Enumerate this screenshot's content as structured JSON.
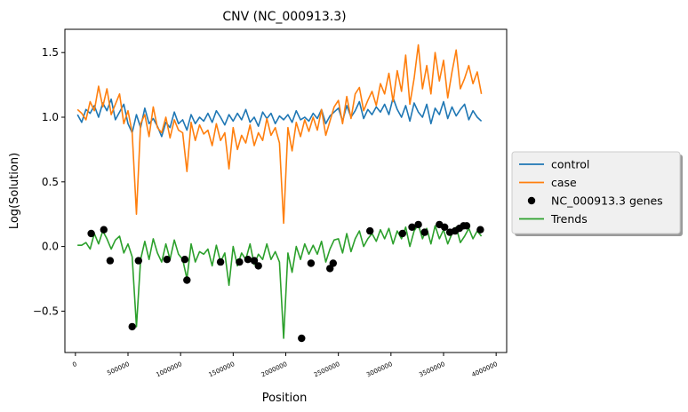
{
  "chart_data": {
    "type": "line",
    "title": "CNV (NC_000913.3)",
    "xlabel": "Position",
    "ylabel": "Log(Solution)",
    "xlim": [
      -100000,
      4100000
    ],
    "ylim": [
      -0.82,
      1.68
    ],
    "x_ticks": [
      0,
      500000,
      1000000,
      1500000,
      2000000,
      2500000,
      3000000,
      3500000,
      4000000
    ],
    "x_tick_labels": [
      "0",
      "500000",
      "1000000",
      "1500000",
      "2000000",
      "2500000",
      "3000000",
      "3500000",
      "4000000"
    ],
    "y_ticks": [
      -0.5,
      0.0,
      0.5,
      1.0,
      1.5
    ],
    "y_tick_labels": [
      "−0.5",
      "0.0",
      "0.5",
      "1.0",
      "1.5"
    ],
    "grid": false,
    "legend_placement": "right, outside plot",
    "series": [
      {
        "name": "control",
        "kind": "line",
        "color": "#1f77b4",
        "x": [
          20000,
          60000,
          100000,
          140000,
          180000,
          220000,
          260000,
          300000,
          340000,
          380000,
          420000,
          460000,
          500000,
          540000,
          580000,
          620000,
          660000,
          700000,
          740000,
          780000,
          820000,
          860000,
          900000,
          940000,
          980000,
          1020000,
          1060000,
          1100000,
          1140000,
          1180000,
          1220000,
          1260000,
          1300000,
          1340000,
          1380000,
          1420000,
          1460000,
          1500000,
          1540000,
          1580000,
          1620000,
          1660000,
          1700000,
          1740000,
          1780000,
          1820000,
          1860000,
          1900000,
          1940000,
          1980000,
          2020000,
          2060000,
          2100000,
          2140000,
          2180000,
          2220000,
          2260000,
          2300000,
          2340000,
          2380000,
          2420000,
          2460000,
          2500000,
          2540000,
          2580000,
          2620000,
          2660000,
          2700000,
          2740000,
          2780000,
          2820000,
          2860000,
          2900000,
          2940000,
          2980000,
          3020000,
          3060000,
          3100000,
          3140000,
          3180000,
          3220000,
          3260000,
          3300000,
          3340000,
          3380000,
          3420000,
          3460000,
          3500000,
          3540000,
          3580000,
          3620000,
          3660000,
          3700000,
          3740000,
          3780000,
          3820000,
          3860000
        ],
        "values": [
          1.02,
          0.96,
          1.06,
          1.03,
          1.09,
          1.0,
          1.11,
          1.05,
          1.14,
          0.98,
          1.04,
          1.1,
          0.95,
          0.88,
          1.02,
          0.92,
          1.07,
          0.95,
          0.99,
          0.93,
          0.85,
          0.96,
          0.92,
          1.04,
          0.95,
          0.98,
          0.9,
          1.02,
          0.95,
          1.0,
          0.97,
          1.03,
          0.96,
          1.05,
          1.0,
          0.94,
          1.02,
          0.97,
          1.03,
          0.98,
          1.06,
          0.96,
          1.0,
          0.93,
          1.04,
          0.99,
          1.03,
          0.95,
          1.01,
          0.98,
          1.02,
          0.96,
          1.05,
          0.98,
          1.0,
          0.97,
          1.03,
          0.99,
          1.06,
          0.95,
          1.01,
          1.04,
          1.07,
          0.97,
          1.09,
          1.0,
          1.05,
          1.12,
          0.99,
          1.06,
          1.02,
          1.08,
          1.04,
          1.1,
          1.02,
          1.15,
          1.06,
          1.0,
          1.09,
          0.97,
          1.11,
          1.04,
          1.0,
          1.1,
          0.95,
          1.07,
          1.02,
          1.12,
          0.99,
          1.08,
          1.01,
          1.06,
          1.1,
          0.98,
          1.05,
          1.0,
          0.97
        ]
      },
      {
        "name": "case",
        "kind": "line",
        "color": "#ff7f0e",
        "x": [
          20000,
          60000,
          100000,
          140000,
          180000,
          220000,
          260000,
          300000,
          340000,
          380000,
          420000,
          460000,
          500000,
          540000,
          580000,
          620000,
          660000,
          700000,
          740000,
          780000,
          820000,
          860000,
          900000,
          940000,
          980000,
          1020000,
          1060000,
          1100000,
          1140000,
          1180000,
          1220000,
          1260000,
          1300000,
          1340000,
          1380000,
          1420000,
          1460000,
          1500000,
          1540000,
          1580000,
          1620000,
          1660000,
          1700000,
          1740000,
          1780000,
          1820000,
          1860000,
          1900000,
          1940000,
          1980000,
          2020000,
          2060000,
          2100000,
          2140000,
          2180000,
          2220000,
          2260000,
          2300000,
          2340000,
          2380000,
          2420000,
          2460000,
          2500000,
          2540000,
          2580000,
          2620000,
          2660000,
          2700000,
          2740000,
          2780000,
          2820000,
          2860000,
          2900000,
          2940000,
          2980000,
          3020000,
          3060000,
          3100000,
          3140000,
          3180000,
          3220000,
          3260000,
          3300000,
          3340000,
          3380000,
          3420000,
          3460000,
          3500000,
          3540000,
          3580000,
          3620000,
          3660000,
          3700000,
          3740000,
          3780000,
          3820000,
          3860000
        ],
        "values": [
          1.06,
          1.03,
          0.98,
          1.12,
          1.05,
          1.24,
          1.08,
          1.22,
          1.02,
          1.1,
          1.18,
          0.95,
          1.05,
          0.88,
          0.25,
          0.95,
          1.02,
          0.85,
          1.08,
          0.92,
          0.88,
          1.0,
          0.84,
          0.98,
          0.9,
          0.88,
          0.58,
          0.96,
          0.82,
          0.94,
          0.87,
          0.9,
          0.78,
          0.95,
          0.82,
          0.88,
          0.6,
          0.92,
          0.75,
          0.86,
          0.8,
          0.94,
          0.78,
          0.88,
          0.82,
          0.99,
          0.86,
          0.92,
          0.8,
          0.18,
          0.92,
          0.74,
          0.96,
          0.85,
          0.98,
          0.89,
          1.0,
          0.9,
          1.06,
          0.86,
          0.97,
          1.08,
          1.13,
          0.95,
          1.16,
          0.99,
          1.18,
          1.23,
          1.05,
          1.13,
          1.2,
          1.09,
          1.26,
          1.18,
          1.34,
          1.12,
          1.36,
          1.2,
          1.48,
          1.1,
          1.3,
          1.56,
          1.22,
          1.4,
          1.18,
          1.5,
          1.28,
          1.44,
          1.15,
          1.35,
          1.52,
          1.22,
          1.3,
          1.4,
          1.26,
          1.35,
          1.18
        ]
      },
      {
        "name": "Trends",
        "kind": "line",
        "color": "#2ca02c",
        "x": [
          20000,
          60000,
          100000,
          140000,
          180000,
          220000,
          260000,
          300000,
          340000,
          380000,
          420000,
          460000,
          500000,
          540000,
          580000,
          620000,
          660000,
          700000,
          740000,
          780000,
          820000,
          860000,
          900000,
          940000,
          980000,
          1020000,
          1060000,
          1100000,
          1140000,
          1180000,
          1220000,
          1260000,
          1300000,
          1340000,
          1380000,
          1420000,
          1460000,
          1500000,
          1540000,
          1580000,
          1620000,
          1660000,
          1700000,
          1740000,
          1780000,
          1820000,
          1860000,
          1900000,
          1940000,
          1980000,
          2020000,
          2060000,
          2100000,
          2140000,
          2180000,
          2220000,
          2260000,
          2300000,
          2340000,
          2380000,
          2420000,
          2460000,
          2500000,
          2540000,
          2580000,
          2620000,
          2660000,
          2700000,
          2740000,
          2780000,
          2820000,
          2860000,
          2900000,
          2940000,
          2980000,
          3020000,
          3060000,
          3100000,
          3140000,
          3180000,
          3220000,
          3260000,
          3300000,
          3340000,
          3380000,
          3420000,
          3460000,
          3500000,
          3540000,
          3580000,
          3620000,
          3660000,
          3700000,
          3740000,
          3780000,
          3820000,
          3860000
        ],
        "values": [
          0.01,
          0.01,
          0.03,
          -0.02,
          0.1,
          0.02,
          0.12,
          0.06,
          -0.02,
          0.05,
          0.08,
          -0.05,
          0.02,
          -0.08,
          -0.62,
          -0.1,
          0.04,
          -0.1,
          0.06,
          -0.05,
          -0.12,
          0.02,
          -0.1,
          0.05,
          -0.06,
          -0.1,
          -0.25,
          0.02,
          -0.12,
          -0.04,
          -0.06,
          -0.02,
          -0.15,
          0.01,
          -0.12,
          -0.05,
          -0.3,
          0.0,
          -0.15,
          -0.05,
          -0.1,
          0.02,
          -0.14,
          -0.06,
          -0.1,
          0.02,
          -0.1,
          -0.04,
          -0.12,
          -0.71,
          -0.05,
          -0.2,
          0.0,
          -0.1,
          0.02,
          -0.06,
          0.01,
          -0.06,
          0.04,
          -0.12,
          -0.02,
          0.05,
          0.06,
          -0.05,
          0.1,
          -0.04,
          0.06,
          0.12,
          0.0,
          0.06,
          0.1,
          0.04,
          0.13,
          0.06,
          0.14,
          0.02,
          0.12,
          0.06,
          0.15,
          0.0,
          0.12,
          0.17,
          0.06,
          0.14,
          0.02,
          0.16,
          0.06,
          0.13,
          0.02,
          0.1,
          0.15,
          0.03,
          0.08,
          0.14,
          0.06,
          0.12,
          0.08
        ]
      },
      {
        "name": "NC_000913.3 genes",
        "kind": "points",
        "color": "#000000",
        "x": [
          150000,
          270000,
          330000,
          540000,
          600000,
          870000,
          1040000,
          1060000,
          1380000,
          1560000,
          1640000,
          1700000,
          1740000,
          2150000,
          2240000,
          2420000,
          2450000,
          2800000,
          3110000,
          3200000,
          3260000,
          3320000,
          3460000,
          3510000,
          3560000,
          3610000,
          3650000,
          3690000,
          3720000,
          3850000
        ],
        "values": [
          0.1,
          0.13,
          -0.11,
          -0.62,
          -0.11,
          -0.1,
          -0.1,
          -0.26,
          -0.12,
          -0.12,
          -0.1,
          -0.11,
          -0.15,
          -0.71,
          -0.13,
          -0.17,
          -0.13,
          0.12,
          0.1,
          0.15,
          0.17,
          0.11,
          0.17,
          0.15,
          0.11,
          0.12,
          0.14,
          0.16,
          0.16,
          0.13
        ]
      }
    ],
    "legend": [
      "control",
      "case",
      "NC_000913.3 genes",
      "Trends"
    ]
  }
}
